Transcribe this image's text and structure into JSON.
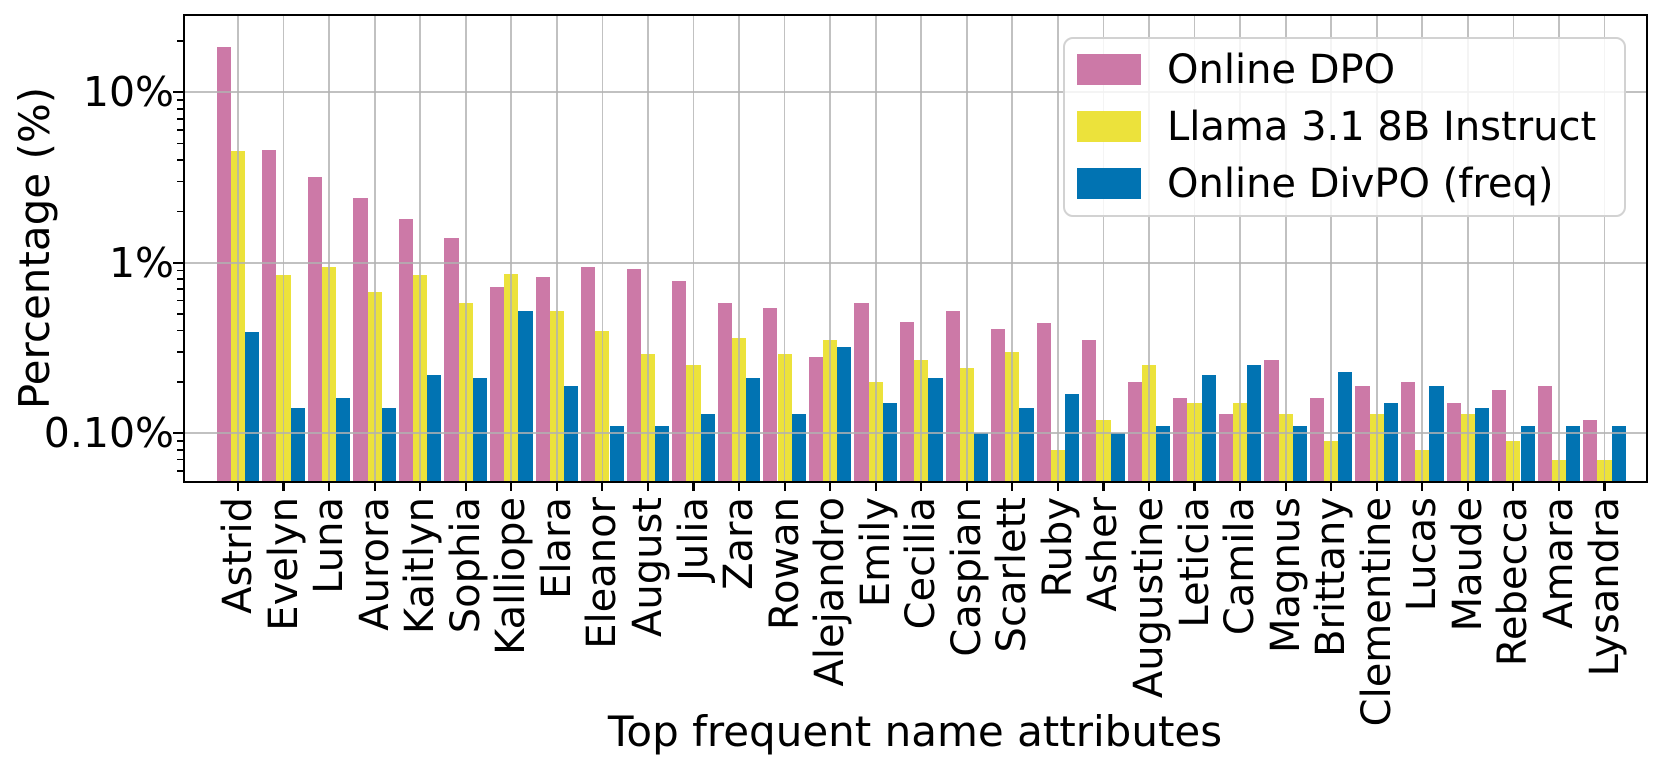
{
  "chart_data": {
    "type": "bar",
    "title": "",
    "xlabel": "Top frequent name attributes",
    "ylabel": "Percentage (%)",
    "yscale": "log",
    "ylim": [
      0.051,
      28.8
    ],
    "grid": true,
    "legend_position": "upper right",
    "yticks": [
      {
        "value": 10,
        "label": "10%"
      },
      {
        "value": 1,
        "label": "1%"
      },
      {
        "value": 0.1,
        "label": "0.10%"
      }
    ],
    "categories": [
      "Astrid",
      "Evelyn",
      "Luna",
      "Aurora",
      "Kaitlyn",
      "Sophia",
      "Kalliope",
      "Elara",
      "Eleanor",
      "August",
      "Julia",
      "Zara",
      "Rowan",
      "Alejandro",
      "Emily",
      "Cecilia",
      "Caspian",
      "Scarlett",
      "Ruby",
      "Asher",
      "Augustine",
      "Leticia",
      "Camila",
      "Magnus",
      "Brittany",
      "Clementine",
      "Lucas",
      "Maude",
      "Rebecca",
      "Amara",
      "Lysandra"
    ],
    "series": [
      {
        "name": "Online DPO",
        "color": "#cc79a7",
        "values": [
          18.5,
          4.6,
          3.2,
          2.4,
          1.8,
          1.4,
          0.72,
          0.83,
          0.94,
          0.92,
          0.78,
          0.58,
          0.54,
          0.28,
          0.58,
          0.45,
          0.52,
          0.41,
          0.44,
          0.35,
          0.2,
          0.16,
          0.13,
          0.27,
          0.16,
          0.19,
          0.2,
          0.15,
          0.18,
          0.19,
          0.12
        ]
      },
      {
        "name": "Llama 3.1 8B Instruct",
        "color": "#ece23b",
        "values": [
          4.5,
          0.85,
          0.94,
          0.67,
          0.85,
          0.58,
          0.86,
          0.52,
          0.4,
          0.29,
          0.25,
          0.36,
          0.29,
          0.35,
          0.2,
          0.27,
          0.24,
          0.3,
          0.08,
          0.12,
          0.25,
          0.15,
          0.15,
          0.13,
          0.09,
          0.13,
          0.08,
          0.13,
          0.09,
          0.07,
          0.07
        ]
      },
      {
        "name": "Online DivPO (freq)",
        "color": "#0173b2",
        "values": [
          0.39,
          0.14,
          0.16,
          0.14,
          0.22,
          0.21,
          0.52,
          0.19,
          0.11,
          0.11,
          0.13,
          0.21,
          0.13,
          0.32,
          0.15,
          0.21,
          0.1,
          0.14,
          0.17,
          0.1,
          0.11,
          0.22,
          0.25,
          0.11,
          0.23,
          0.15,
          0.19,
          0.14,
          0.11,
          0.11,
          0.11
        ]
      }
    ],
    "colors": {
      "gridline": "#b2b2b2",
      "spine": "#000000",
      "background": "#ffffff"
    }
  }
}
